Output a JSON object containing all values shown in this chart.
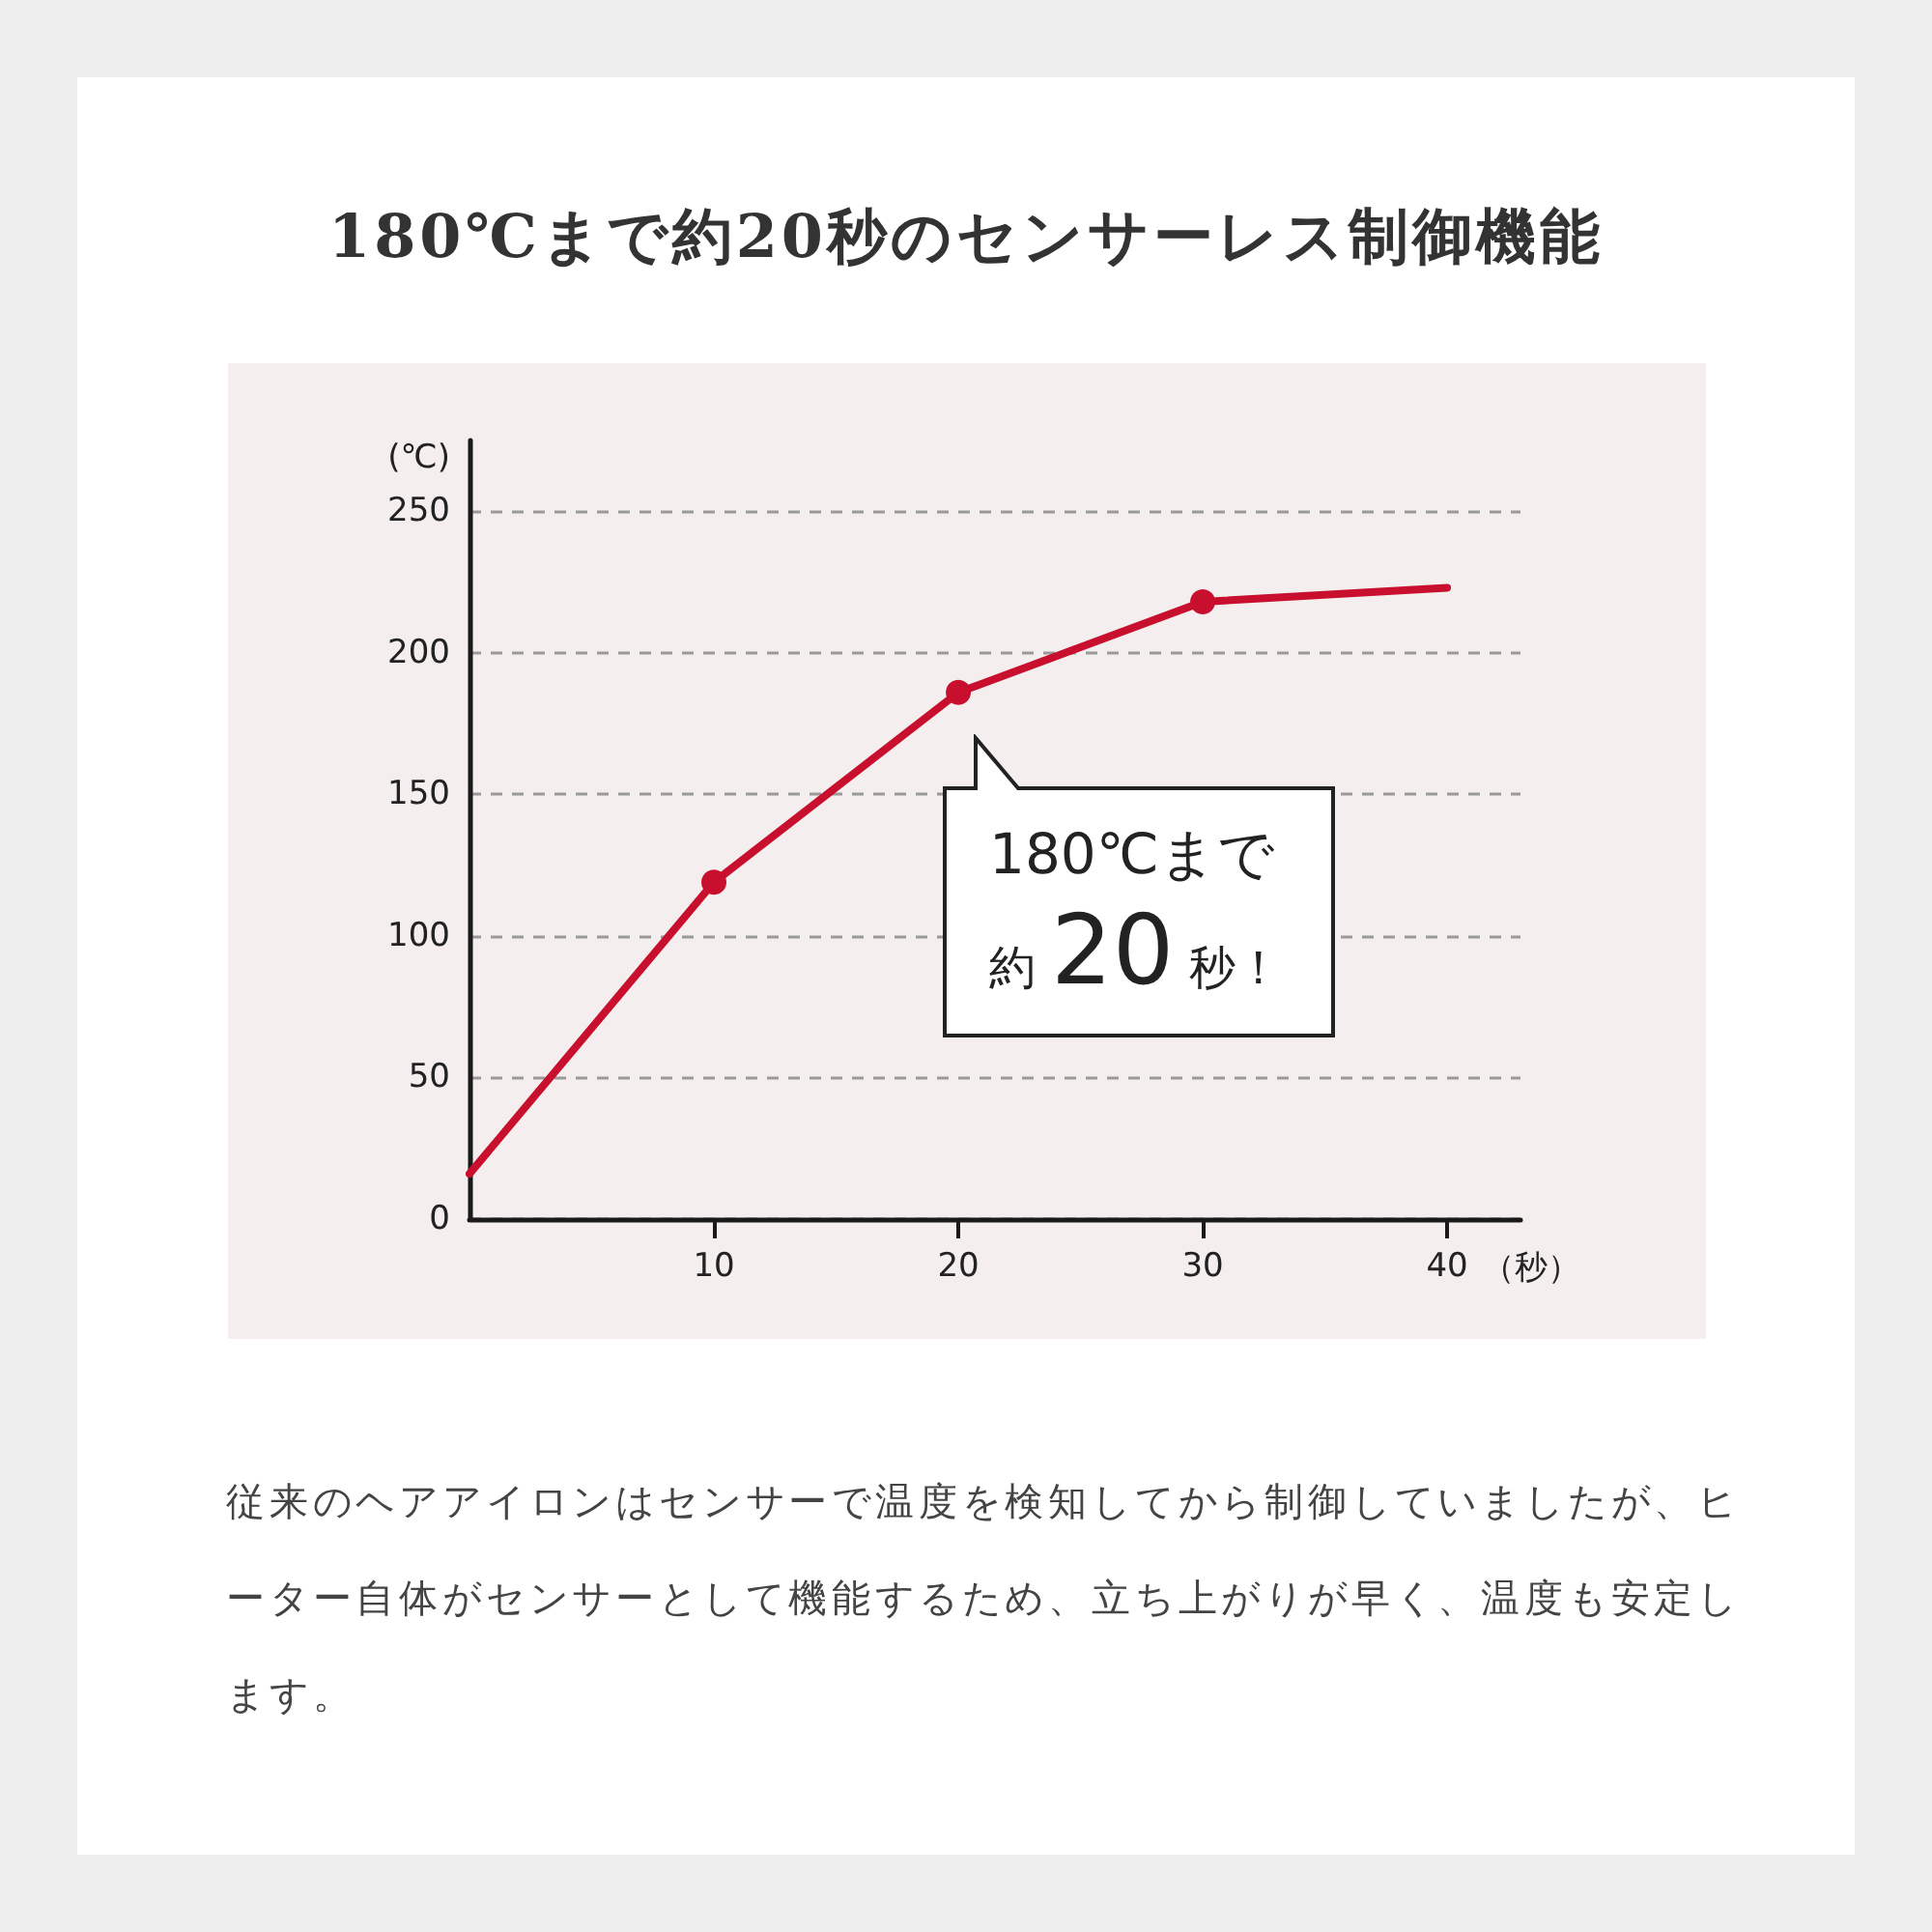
{
  "chart_data": {
    "type": "line",
    "title": "180℃まで約20秒のセンサーレス制御機能",
    "xlabel": "（秒）",
    "ylabel": "(℃)",
    "series": [
      {
        "type": "line",
        "color": "#c8102e",
        "marker": "none",
        "x": [
          0,
          10,
          20,
          30,
          40
        ],
        "values": [
          16,
          119,
          186,
          218,
          223
        ]
      },
      {
        "type": "scatter",
        "color": "#c8102e",
        "marker": "circle",
        "x": [
          10,
          20,
          30
        ],
        "values": [
          119,
          186,
          218
        ]
      }
    ],
    "xlim": [
      0,
      43
    ],
    "xticks": [
      10,
      20,
      30,
      40
    ],
    "ylim": [
      0,
      275
    ],
    "yticks": [
      0,
      50,
      100,
      150,
      200,
      250
    ],
    "grid": "y",
    "line_style": "solid",
    "annotations": [
      {
        "text": "180℃まで",
        "x": 20,
        "y": 186
      },
      {
        "text": "約20秒！",
        "x": 20,
        "y": 186
      },
      "従来のヘアアイロンはセンサーで温度を検知してから制御していましたが、ヒーター自体がセンサーとして機能するため、立ち上がりが早く、温度も安定します。"
    ]
  }
}
